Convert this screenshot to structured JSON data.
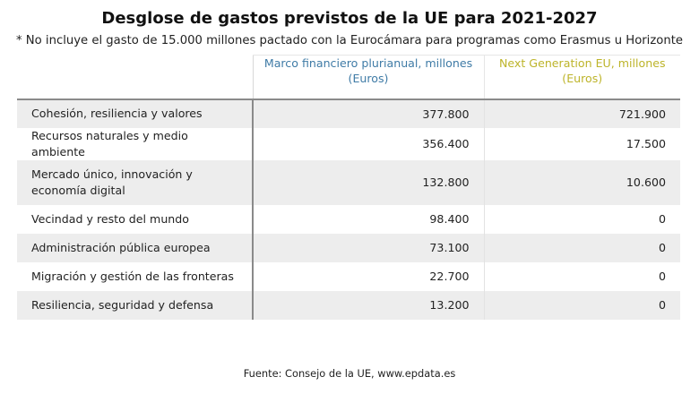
{
  "title": "Desglose de gastos previstos de la UE para 2021-2027",
  "subtitle": "* No incluye el gasto de 15.000 millones pactado con la Eurocámara para programas como Erasmus u Horizonte",
  "source": "Fuente: Consejo de la UE, www.epdata.es",
  "colors": {
    "mff_header": "#3f7ba6",
    "ngeu_header": "#bdb42a",
    "row_stripe": "#ededed"
  },
  "chart_data": {
    "type": "table",
    "columns": [
      {
        "key": "mff",
        "line1": "Marco financiero plurianual, millones",
        "line2": "(Euros)"
      },
      {
        "key": "ngeu",
        "line1": "Next Generation EU, millones",
        "line2": "(Euros)"
      }
    ],
    "rows": [
      {
        "category": "Cohesión, resiliencia y valores",
        "mff": "377.800",
        "ngeu": "721.900"
      },
      {
        "category": "Recursos naturales y medio ambiente",
        "mff": "356.400",
        "ngeu": "17.500"
      },
      {
        "category_line1": "Mercado único, innovación y",
        "category_line2": "economía digital",
        "mff": "132.800",
        "ngeu": "10.600"
      },
      {
        "category": "Vecindad y resto del mundo",
        "mff": "98.400",
        "ngeu": "0"
      },
      {
        "category": "Administración pública europea",
        "mff": "73.100",
        "ngeu": "0"
      },
      {
        "category": "Migración y gestión de las fronteras",
        "mff": "22.700",
        "ngeu": "0"
      },
      {
        "category": "Resiliencia, seguridad y defensa",
        "mff": "13.200",
        "ngeu": "0"
      }
    ]
  }
}
